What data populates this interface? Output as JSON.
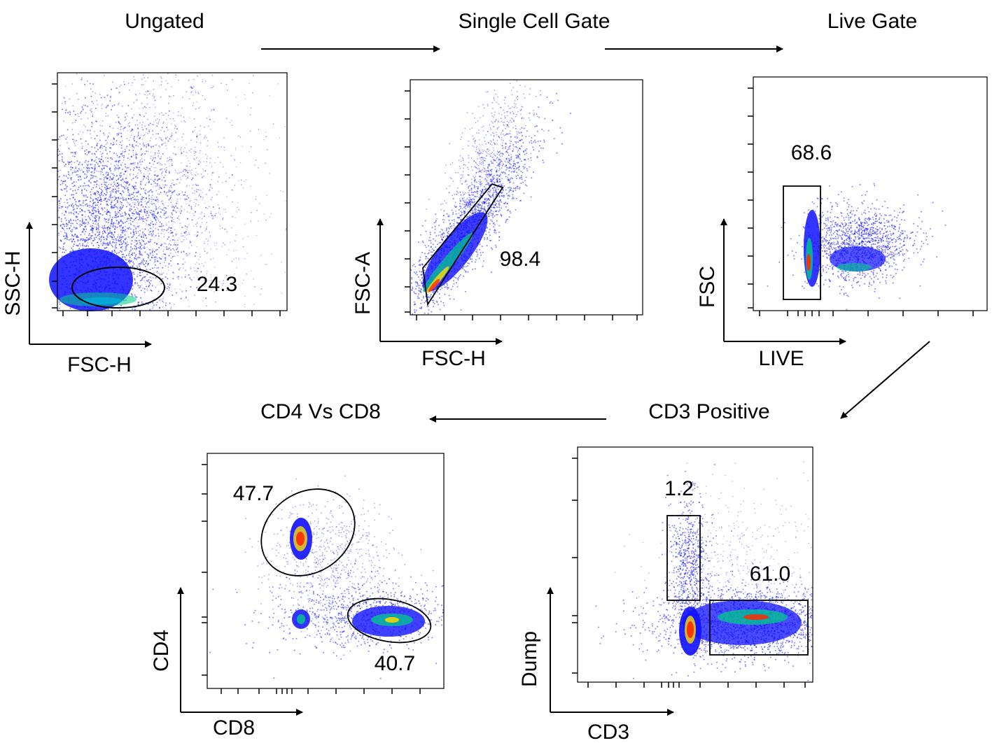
{
  "colors": {
    "background": "#ffffff",
    "ink": "#000000",
    "density_low": "#1010ff",
    "density_mid": "#00cc88",
    "density_high": "#ff2a00"
  },
  "icons": {
    "flow_arrow": "arrow-right-icon"
  },
  "chart_data": [
    {
      "id": "ungated",
      "type": "scatter",
      "title": "Ungated",
      "xlabel": "FSC-H",
      "ylabel": "SSC-H",
      "gate": {
        "shape": "ellipse",
        "value": "24.3"
      }
    },
    {
      "id": "single-cell",
      "type": "scatter",
      "title": "Single Cell Gate",
      "xlabel": "FSC-H",
      "ylabel": "FSC-A",
      "gate": {
        "shape": "polygon",
        "value": "98.4"
      }
    },
    {
      "id": "live",
      "type": "scatter",
      "title": "Live Gate",
      "xlabel": "LIVE",
      "ylabel": "FSC",
      "gate": {
        "shape": "rectangle",
        "value": "68.6"
      }
    },
    {
      "id": "cd3",
      "type": "scatter",
      "title": "CD3 Positive",
      "xlabel": "CD3",
      "ylabel": "Dump",
      "gates": [
        {
          "shape": "rectangle",
          "value": "1.2"
        },
        {
          "shape": "rectangle",
          "value": "61.0"
        }
      ]
    },
    {
      "id": "cd4cd8",
      "type": "scatter",
      "title": "CD4 Vs CD8",
      "xlabel": "CD8",
      "ylabel": "CD4",
      "gates": [
        {
          "shape": "ellipse",
          "value": "47.7"
        },
        {
          "shape": "ellipse",
          "value": "40.7"
        }
      ]
    }
  ],
  "flow": [
    "ungated",
    "single-cell",
    "live",
    "cd3",
    "cd4cd8"
  ]
}
